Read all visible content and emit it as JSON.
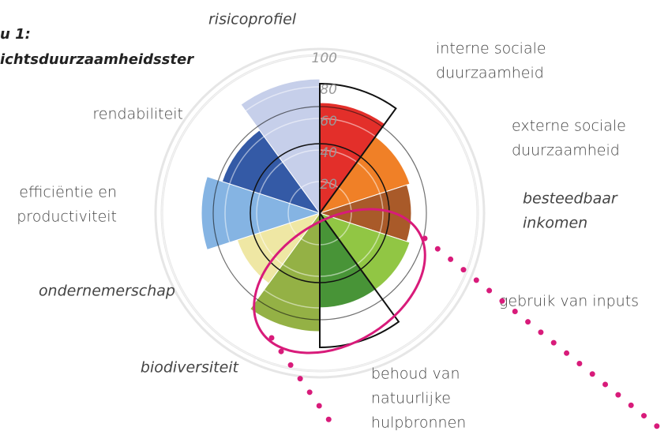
{
  "chart_data": {
    "type": "polar-area",
    "title": [
      "u 1:",
      "ichtsduurzaamheidsster"
    ],
    "categories": [
      [
        "interne sociale",
        "duurzaamheid"
      ],
      [
        "externe sociale",
        "duurzaamheid"
      ],
      [
        "besteedbaar",
        "inkomen"
      ],
      [
        "gebruik van inputs"
      ],
      [
        "behoud van",
        "natuurlijke",
        "hulpbronnen"
      ],
      [
        "biodiversiteit"
      ],
      [
        "ondernemerschap"
      ],
      [
        "efficiëntie en",
        "productiviteit"
      ],
      [
        "rendabiliteit"
      ],
      [
        "risicoprofiel"
      ]
    ],
    "values": [
      70,
      60,
      58,
      60,
      60,
      75,
      55,
      75,
      65,
      85
    ],
    "reference": [
      82,
      null,
      null,
      null,
      85,
      null,
      null,
      null,
      null,
      null
    ],
    "colors": [
      "#e2241f",
      "#f07a1c",
      "#a5521e",
      "#8cc43a",
      "#3f8f2d",
      "#8fad3c",
      "#efe6a0",
      "#7fb0e2",
      "#2a52a2",
      "#c3cde9"
    ],
    "italic": [
      false,
      false,
      true,
      false,
      false,
      true,
      true,
      false,
      false,
      true
    ],
    "rlim": [
      0,
      100
    ],
    "rticks": [
      20,
      40,
      60,
      80,
      100
    ]
  }
}
